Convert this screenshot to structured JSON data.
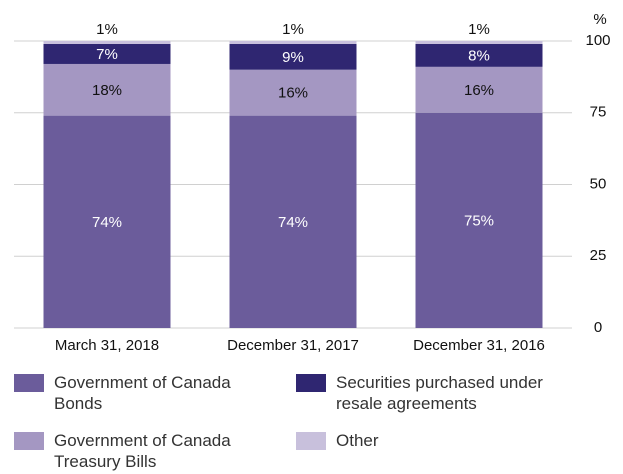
{
  "chart_data": {
    "type": "stacked_bar",
    "categories": [
      "March 31, 2018",
      "December 31, 2017",
      "December 31, 2016"
    ],
    "series": [
      {
        "name": "Government of Canada Bonds",
        "color": "#6b5c9b",
        "values": [
          74,
          74,
          75
        ],
        "value_labels": [
          "74%",
          "74%",
          "75%"
        ]
      },
      {
        "name": "Government of Canada Treasury Bills",
        "color": "#a497c2",
        "values": [
          18,
          16,
          16
        ],
        "value_labels": [
          "18%",
          "16%",
          "16%"
        ]
      },
      {
        "name": "Securities purchased under resale agreements",
        "color": "#2f2671",
        "values": [
          7,
          9,
          8
        ],
        "value_labels": [
          "7%",
          "9%",
          "8%"
        ]
      },
      {
        "name": "Other",
        "color": "#c8c0dc",
        "values": [
          1,
          1,
          1
        ],
        "value_labels": [
          "1%",
          "1%",
          "1%"
        ]
      }
    ],
    "ylabel": "%",
    "ylim": [
      0,
      100
    ],
    "yticks": [
      0,
      25,
      50,
      75,
      100
    ],
    "grid": true,
    "y_axis_side": "right"
  }
}
